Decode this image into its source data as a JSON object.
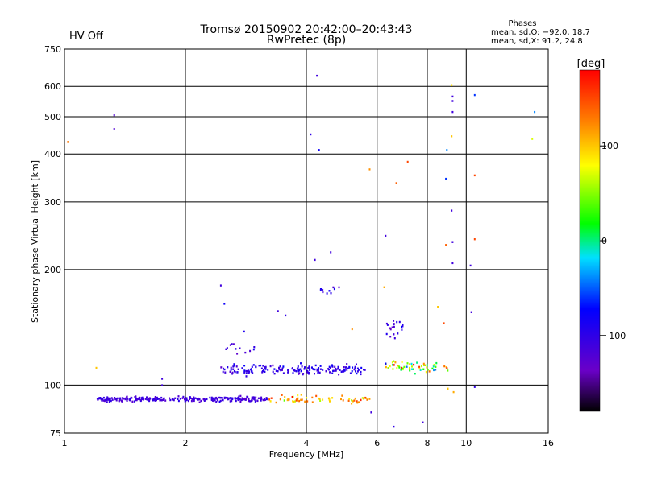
{
  "header": {
    "title_line1": "Tromsø 20150902 20:42:00–20:43:43",
    "title_line2": "RwPretec (8p)",
    "hv_status": "HV Off",
    "hv_color": "#cc0000",
    "phases_title": "Phases",
    "phases_o": "mean, sd,O:  −92.0, 18.7",
    "phases_x": "mean, sd,X:  91.2, 24.8"
  },
  "chart_data": {
    "type": "scatter",
    "xlabel": "Frequency [MHz]",
    "ylabel": "Stationary phase Virtual Height [km]",
    "xscale": "log",
    "yscale": "log",
    "xlim": [
      1,
      16
    ],
    "ylim": [
      75,
      750
    ],
    "x_ticks": [
      1,
      2,
      4,
      6,
      8,
      10,
      16
    ],
    "y_ticks": [
      75,
      100,
      200,
      300,
      400,
      500,
      600,
      750
    ],
    "grid": true,
    "colorbar": {
      "label": "[deg]",
      "range": [
        -180,
        180
      ],
      "ticks": [
        100,
        0,
        -100
      ]
    },
    "bands": [
      {
        "name": "",
        "x_start": 1.2,
        "x_end": 3.2,
        "height": 92,
        "height_sd": 1.0,
        "count": 260,
        "phase": -110,
        "phase_sd": 12
      },
      {
        "name": "",
        "x_start": 3.2,
        "x_end": 5.8,
        "height": 92,
        "height_sd": 1.6,
        "count": 60,
        "phase": 110,
        "phase_sd": 40
      },
      {
        "name": "",
        "x_start": 2.45,
        "x_end": 5.6,
        "height": 110,
        "height_sd": 2.4,
        "count": 180,
        "phase": -100,
        "phase_sd": 18
      },
      {
        "name": "",
        "x_start": 6.3,
        "x_end": 9.0,
        "height": 112,
        "height_sd": 3.0,
        "count": 60,
        "phase": 60,
        "phase_sd": 80
      },
      {
        "name": "",
        "x_start": 2.5,
        "x_end": 3.0,
        "height": 125,
        "height_sd": 3.0,
        "count": 12,
        "phase": -110,
        "phase_sd": 15
      },
      {
        "name": "",
        "x_start": 4.3,
        "x_end": 4.9,
        "height": 175,
        "height_sd": 4.0,
        "count": 10,
        "phase": -90,
        "phase_sd": 20
      },
      {
        "name": "",
        "x_start": 6.3,
        "x_end": 7.0,
        "height": 140,
        "height_sd": 6.0,
        "count": 20,
        "phase": -100,
        "phase_sd": 25
      }
    ],
    "points": [
      {
        "x": 1.02,
        "y": 430,
        "phase": 130
      },
      {
        "x": 1.33,
        "y": 505,
        "phase": -120
      },
      {
        "x": 1.33,
        "y": 465,
        "phase": -120
      },
      {
        "x": 1.2,
        "y": 111,
        "phase": 100
      },
      {
        "x": 1.75,
        "y": 104,
        "phase": -110
      },
      {
        "x": 1.75,
        "y": 100,
        "phase": -110
      },
      {
        "x": 2.45,
        "y": 182,
        "phase": -110
      },
      {
        "x": 2.5,
        "y": 163,
        "phase": -80
      },
      {
        "x": 2.8,
        "y": 138,
        "phase": -90
      },
      {
        "x": 3.4,
        "y": 156,
        "phase": -110
      },
      {
        "x": 3.55,
        "y": 152,
        "phase": -100
      },
      {
        "x": 4.25,
        "y": 640,
        "phase": -110
      },
      {
        "x": 4.1,
        "y": 450,
        "phase": -100
      },
      {
        "x": 4.3,
        "y": 410,
        "phase": -80
      },
      {
        "x": 4.2,
        "y": 212,
        "phase": -110
      },
      {
        "x": 4.6,
        "y": 222,
        "phase": -110
      },
      {
        "x": 5.75,
        "y": 365,
        "phase": 120
      },
      {
        "x": 6.3,
        "y": 245,
        "phase": -110
      },
      {
        "x": 6.7,
        "y": 336,
        "phase": 140
      },
      {
        "x": 7.15,
        "y": 382,
        "phase": 150
      },
      {
        "x": 8.95,
        "y": 410,
        "phase": -40
      },
      {
        "x": 8.9,
        "y": 345,
        "phase": -60
      },
      {
        "x": 9.2,
        "y": 605,
        "phase": 90
      },
      {
        "x": 9.25,
        "y": 565,
        "phase": -110
      },
      {
        "x": 9.25,
        "y": 550,
        "phase": -110
      },
      {
        "x": 9.25,
        "y": 515,
        "phase": -110
      },
      {
        "x": 9.2,
        "y": 445,
        "phase": 100
      },
      {
        "x": 9.2,
        "y": 285,
        "phase": -110
      },
      {
        "x": 8.9,
        "y": 232,
        "phase": 140
      },
      {
        "x": 9.25,
        "y": 236,
        "phase": -110
      },
      {
        "x": 9.25,
        "y": 208,
        "phase": -110
      },
      {
        "x": 10.25,
        "y": 205,
        "phase": -110
      },
      {
        "x": 10.5,
        "y": 570,
        "phase": -60
      },
      {
        "x": 10.5,
        "y": 352,
        "phase": 150
      },
      {
        "x": 10.5,
        "y": 240,
        "phase": 150
      },
      {
        "x": 10.3,
        "y": 155,
        "phase": -110
      },
      {
        "x": 10.5,
        "y": 99,
        "phase": -100
      },
      {
        "x": 14.8,
        "y": 515,
        "phase": -40
      },
      {
        "x": 14.6,
        "y": 438,
        "phase": 70
      },
      {
        "x": 9.0,
        "y": 98,
        "phase": 100
      },
      {
        "x": 9.3,
        "y": 96,
        "phase": 110
      },
      {
        "x": 6.25,
        "y": 180,
        "phase": 110
      },
      {
        "x": 7.8,
        "y": 80,
        "phase": -110
      },
      {
        "x": 6.6,
        "y": 78,
        "phase": -100
      },
      {
        "x": 5.8,
        "y": 85,
        "phase": -110
      },
      {
        "x": 8.5,
        "y": 160,
        "phase": 100
      },
      {
        "x": 8.8,
        "y": 145,
        "phase": 150
      },
      {
        "x": 5.2,
        "y": 140,
        "phase": 120
      }
    ]
  }
}
